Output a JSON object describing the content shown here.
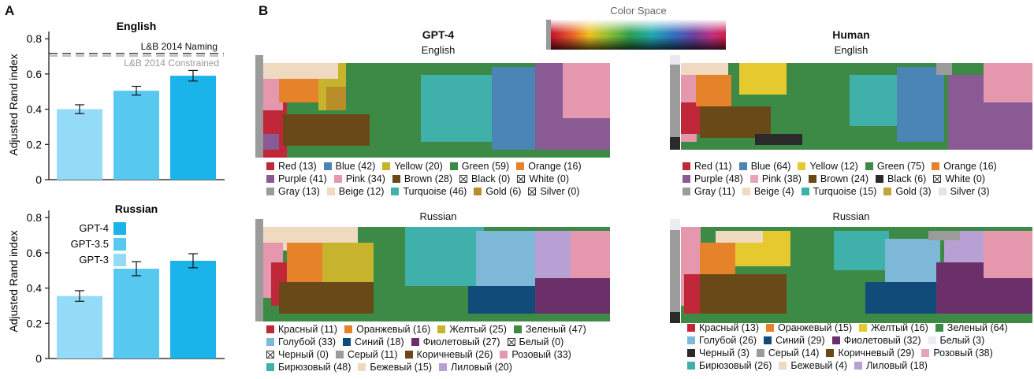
{
  "panel_a": {
    "label": "A",
    "ylabel": "Adjusted Rand index",
    "english_title": "English",
    "russian_title": "Russian",
    "ref_naming": "L&B 2014 Naming",
    "ref_constrained": "L&B 2014 Constrained",
    "model_legend": [
      {
        "name": "GPT-4",
        "color": "#1ab4ea"
      },
      {
        "name": "GPT-3.5",
        "color": "#57c8f0"
      },
      {
        "name": "GPT-3",
        "color": "#93dbf6"
      }
    ],
    "yticks": [
      "0",
      "0.2",
      "0.4",
      "0.6",
      "0.8"
    ]
  },
  "chart_data": [
    {
      "type": "bar",
      "title": "English",
      "ylabel": "Adjusted Rand index",
      "ylim": [
        0,
        0.85
      ],
      "categories": [
        "GPT-3",
        "GPT-3.5",
        "GPT-4"
      ],
      "values": [
        0.4,
        0.505,
        0.59
      ],
      "error": [
        0.025,
        0.025,
        0.03
      ],
      "reference_lines": [
        {
          "name": "L&B 2014 Naming",
          "value": 0.755
        },
        {
          "name": "L&B 2014 Constrained",
          "value": 0.74
        }
      ]
    },
    {
      "type": "bar",
      "title": "Russian",
      "ylabel": "Adjusted Rand index",
      "ylim": [
        0,
        0.85
      ],
      "categories": [
        "GPT-3",
        "GPT-3.5",
        "GPT-4"
      ],
      "values": [
        0.355,
        0.51,
        0.555
      ],
      "error": [
        0.03,
        0.04,
        0.04
      ]
    }
  ],
  "panel_b": {
    "label": "B",
    "color_space_title": "Color Space",
    "gpt4_title": "GPT-4",
    "human_title": "Human",
    "english": "English",
    "russian": "Russian"
  },
  "legends": {
    "gpt_en": [
      [
        {
          "t": "Red (13)",
          "c": "#c0283a"
        },
        {
          "t": "Blue (42)",
          "c": "#4a85b5"
        },
        {
          "t": "Yellow (20)",
          "c": "#c8b42c"
        },
        {
          "t": "Green (59)",
          "c": "#3c8a46"
        },
        {
          "t": "Orange (16)",
          "c": "#e5822a"
        }
      ],
      [
        {
          "t": "Purple (41)",
          "c": "#8a5a95"
        },
        {
          "t": "Pink (34)",
          "c": "#e497ad"
        },
        {
          "t": "Brown (28)",
          "c": "#6a4918"
        },
        {
          "t": "Black (0)",
          "x": true
        },
        {
          "t": "White (0)",
          "x": true
        }
      ],
      [
        {
          "t": "Gray (13)",
          "c": "#9b9b9b"
        },
        {
          "t": "Beige (12)",
          "c": "#efd9c0"
        },
        {
          "t": "Turquoise (46)",
          "c": "#3fb1aa"
        },
        {
          "t": "Gold (6)",
          "c": "#b88d2a"
        },
        {
          "t": "Silver (0)",
          "x": true
        }
      ]
    ],
    "human_en": [
      [
        {
          "t": "Red (11)",
          "c": "#c0283a"
        },
        {
          "t": "Blue (64)",
          "c": "#4a85b5"
        },
        {
          "t": "Yellow (12)",
          "c": "#e5c92f"
        },
        {
          "t": "Green (75)",
          "c": "#3c8a46"
        },
        {
          "t": "Orange (16)",
          "c": "#e5822a"
        }
      ],
      [
        {
          "t": "Purple (48)",
          "c": "#8a5a95"
        },
        {
          "t": "Pink (38)",
          "c": "#e9a3b4"
        },
        {
          "t": "Brown (24)",
          "c": "#6a4918"
        },
        {
          "t": "Black (6)",
          "c": "#2a2a2a"
        },
        {
          "t": "White (0)",
          "x": true
        }
      ],
      [
        {
          "t": "Gray (11)",
          "c": "#9b9b9b"
        },
        {
          "t": "Beige (4)",
          "c": "#efd9c0"
        },
        {
          "t": "Turquoise (15)",
          "c": "#3fb1aa"
        },
        {
          "t": "Gold (3)",
          "c": "#c4a23c"
        },
        {
          "t": "Silver (3)",
          "c": "#e2e2ec"
        }
      ]
    ],
    "gpt_ru": [
      [
        {
          "t": "Красный (11)",
          "c": "#c0283a"
        },
        {
          "t": "Оранжевый (16)",
          "c": "#e5822a"
        },
        {
          "t": "Желтый (25)",
          "c": "#c8b42c"
        },
        {
          "t": "Зеленый (47)",
          "c": "#3c8a46"
        }
      ],
      [
        {
          "t": "Голубой (33)",
          "c": "#7db8d9"
        },
        {
          "t": "Синий (18)",
          "c": "#114b7a"
        },
        {
          "t": "Фиолетовый (27)",
          "c": "#6b2f6a"
        },
        {
          "t": "Белый (0)",
          "x": true
        }
      ],
      [
        {
          "t": "Черный (0)",
          "x": true
        },
        {
          "t": "Серый (11)",
          "c": "#9b9b9b"
        },
        {
          "t": "Коричневый (26)",
          "c": "#6a4918"
        },
        {
          "t": "Розовый (33)",
          "c": "#e497ad"
        }
      ],
      [
        {
          "t": "Бирюзовый (48)",
          "c": "#3fb1aa"
        },
        {
          "t": "Бежевый (15)",
          "c": "#efd9c0"
        },
        {
          "t": "Лиловый (20)",
          "c": "#b9a0d4"
        }
      ]
    ],
    "human_ru": [
      [
        {
          "t": "Красный (13)",
          "c": "#c0283a"
        },
        {
          "t": "Оранжевый (15)",
          "c": "#e5822a"
        },
        {
          "t": "Желтый (16)",
          "c": "#e5c92f"
        },
        {
          "t": "Зеленый (64)",
          "c": "#3c8a46"
        }
      ],
      [
        {
          "t": "Голубой (26)",
          "c": "#7db8d9"
        },
        {
          "t": "Синий (29)",
          "c": "#114b7a"
        },
        {
          "t": "Фиолетовый (32)",
          "c": "#6b2f6a"
        },
        {
          "t": "Белый (3)",
          "c": "#ececf2"
        }
      ],
      [
        {
          "t": "Черный (3)",
          "c": "#2a2a2a"
        },
        {
          "t": "Серый (14)",
          "c": "#9b9b9b"
        },
        {
          "t": "Коричневый (29)",
          "c": "#6a4918"
        },
        {
          "t": "Розовый (38)",
          "c": "#e9a3b4"
        }
      ],
      [
        {
          "t": "Бирюзовый (26)",
          "c": "#3fb1aa"
        },
        {
          "t": "Бежевый (4)",
          "c": "#efd9c0"
        },
        {
          "t": "Лиловый (18)",
          "c": "#b9a0d4"
        }
      ]
    ]
  }
}
